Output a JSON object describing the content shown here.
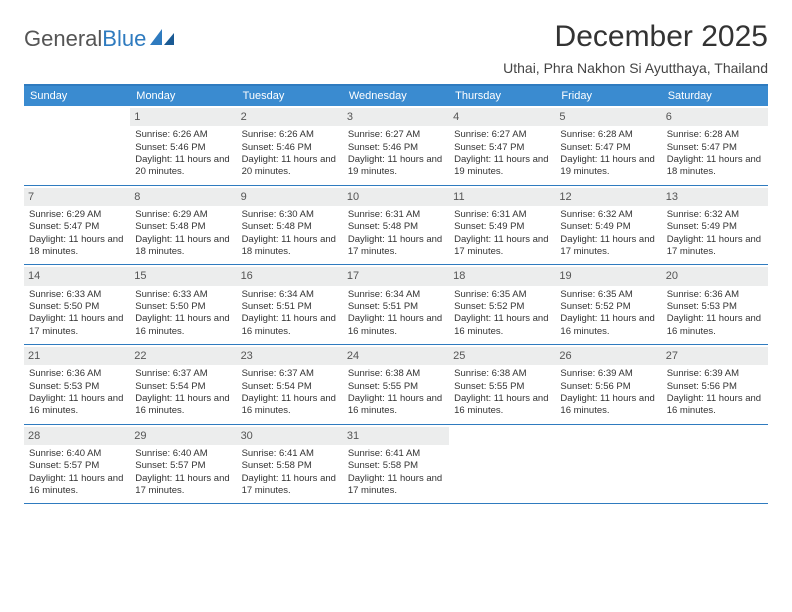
{
  "brand": {
    "part1": "General",
    "part2": "Blue"
  },
  "title": "December 2025",
  "location": "Uthai, Phra Nakhon Si Ayutthaya, Thailand",
  "colors": {
    "header_bg": "#3a8bd0",
    "rule": "#2f7bbf",
    "daynum_bg": "#eceded",
    "text": "#333333"
  },
  "weekdays": [
    "Sunday",
    "Monday",
    "Tuesday",
    "Wednesday",
    "Thursday",
    "Friday",
    "Saturday"
  ],
  "weeks": [
    [
      null,
      {
        "n": "1",
        "sr": "6:26 AM",
        "ss": "5:46 PM",
        "dl": "11 hours and 20 minutes."
      },
      {
        "n": "2",
        "sr": "6:26 AM",
        "ss": "5:46 PM",
        "dl": "11 hours and 20 minutes."
      },
      {
        "n": "3",
        "sr": "6:27 AM",
        "ss": "5:46 PM",
        "dl": "11 hours and 19 minutes."
      },
      {
        "n": "4",
        "sr": "6:27 AM",
        "ss": "5:47 PM",
        "dl": "11 hours and 19 minutes."
      },
      {
        "n": "5",
        "sr": "6:28 AM",
        "ss": "5:47 PM",
        "dl": "11 hours and 19 minutes."
      },
      {
        "n": "6",
        "sr": "6:28 AM",
        "ss": "5:47 PM",
        "dl": "11 hours and 18 minutes."
      }
    ],
    [
      {
        "n": "7",
        "sr": "6:29 AM",
        "ss": "5:47 PM",
        "dl": "11 hours and 18 minutes."
      },
      {
        "n": "8",
        "sr": "6:29 AM",
        "ss": "5:48 PM",
        "dl": "11 hours and 18 minutes."
      },
      {
        "n": "9",
        "sr": "6:30 AM",
        "ss": "5:48 PM",
        "dl": "11 hours and 18 minutes."
      },
      {
        "n": "10",
        "sr": "6:31 AM",
        "ss": "5:48 PM",
        "dl": "11 hours and 17 minutes."
      },
      {
        "n": "11",
        "sr": "6:31 AM",
        "ss": "5:49 PM",
        "dl": "11 hours and 17 minutes."
      },
      {
        "n": "12",
        "sr": "6:32 AM",
        "ss": "5:49 PM",
        "dl": "11 hours and 17 minutes."
      },
      {
        "n": "13",
        "sr": "6:32 AM",
        "ss": "5:49 PM",
        "dl": "11 hours and 17 minutes."
      }
    ],
    [
      {
        "n": "14",
        "sr": "6:33 AM",
        "ss": "5:50 PM",
        "dl": "11 hours and 17 minutes."
      },
      {
        "n": "15",
        "sr": "6:33 AM",
        "ss": "5:50 PM",
        "dl": "11 hours and 16 minutes."
      },
      {
        "n": "16",
        "sr": "6:34 AM",
        "ss": "5:51 PM",
        "dl": "11 hours and 16 minutes."
      },
      {
        "n": "17",
        "sr": "6:34 AM",
        "ss": "5:51 PM",
        "dl": "11 hours and 16 minutes."
      },
      {
        "n": "18",
        "sr": "6:35 AM",
        "ss": "5:52 PM",
        "dl": "11 hours and 16 minutes."
      },
      {
        "n": "19",
        "sr": "6:35 AM",
        "ss": "5:52 PM",
        "dl": "11 hours and 16 minutes."
      },
      {
        "n": "20",
        "sr": "6:36 AM",
        "ss": "5:53 PM",
        "dl": "11 hours and 16 minutes."
      }
    ],
    [
      {
        "n": "21",
        "sr": "6:36 AM",
        "ss": "5:53 PM",
        "dl": "11 hours and 16 minutes."
      },
      {
        "n": "22",
        "sr": "6:37 AM",
        "ss": "5:54 PM",
        "dl": "11 hours and 16 minutes."
      },
      {
        "n": "23",
        "sr": "6:37 AM",
        "ss": "5:54 PM",
        "dl": "11 hours and 16 minutes."
      },
      {
        "n": "24",
        "sr": "6:38 AM",
        "ss": "5:55 PM",
        "dl": "11 hours and 16 minutes."
      },
      {
        "n": "25",
        "sr": "6:38 AM",
        "ss": "5:55 PM",
        "dl": "11 hours and 16 minutes."
      },
      {
        "n": "26",
        "sr": "6:39 AM",
        "ss": "5:56 PM",
        "dl": "11 hours and 16 minutes."
      },
      {
        "n": "27",
        "sr": "6:39 AM",
        "ss": "5:56 PM",
        "dl": "11 hours and 16 minutes."
      }
    ],
    [
      {
        "n": "28",
        "sr": "6:40 AM",
        "ss": "5:57 PM",
        "dl": "11 hours and 16 minutes."
      },
      {
        "n": "29",
        "sr": "6:40 AM",
        "ss": "5:57 PM",
        "dl": "11 hours and 17 minutes."
      },
      {
        "n": "30",
        "sr": "6:41 AM",
        "ss": "5:58 PM",
        "dl": "11 hours and 17 minutes."
      },
      {
        "n": "31",
        "sr": "6:41 AM",
        "ss": "5:58 PM",
        "dl": "11 hours and 17 minutes."
      },
      null,
      null,
      null
    ]
  ],
  "labels": {
    "sunrise": "Sunrise:",
    "sunset": "Sunset:",
    "daylight": "Daylight:"
  }
}
